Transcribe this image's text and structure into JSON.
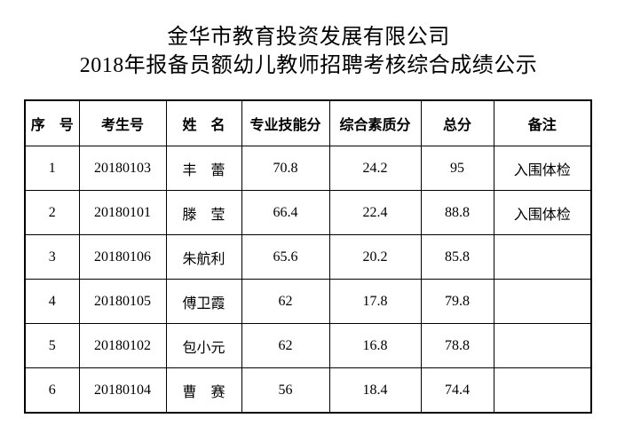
{
  "title": {
    "line1": "金华市教育投资发展有限公司",
    "line2": "2018年报备员额幼儿教师招聘考核综合成绩公示"
  },
  "table": {
    "headers": [
      "序　号",
      "考生号",
      "姓　名",
      "专业技能分",
      "综合素质分",
      "总分",
      "备注"
    ],
    "rows": [
      [
        "1",
        "20180103",
        "丰　蕾",
        "70.8",
        "24.2",
        "95",
        "入围体检"
      ],
      [
        "2",
        "20180101",
        "滕　莹",
        "66.4",
        "22.4",
        "88.8",
        "入围体检"
      ],
      [
        "3",
        "20180106",
        "朱航利",
        "65.6",
        "20.2",
        "85.8",
        ""
      ],
      [
        "4",
        "20180105",
        "傅卫霞",
        "62",
        "17.8",
        "79.8",
        ""
      ],
      [
        "5",
        "20180102",
        "包小元",
        "62",
        "16.8",
        "78.8",
        ""
      ],
      [
        "6",
        "20180104",
        "曹　赛",
        "56",
        "18.4",
        "74.4",
        ""
      ]
    ]
  }
}
